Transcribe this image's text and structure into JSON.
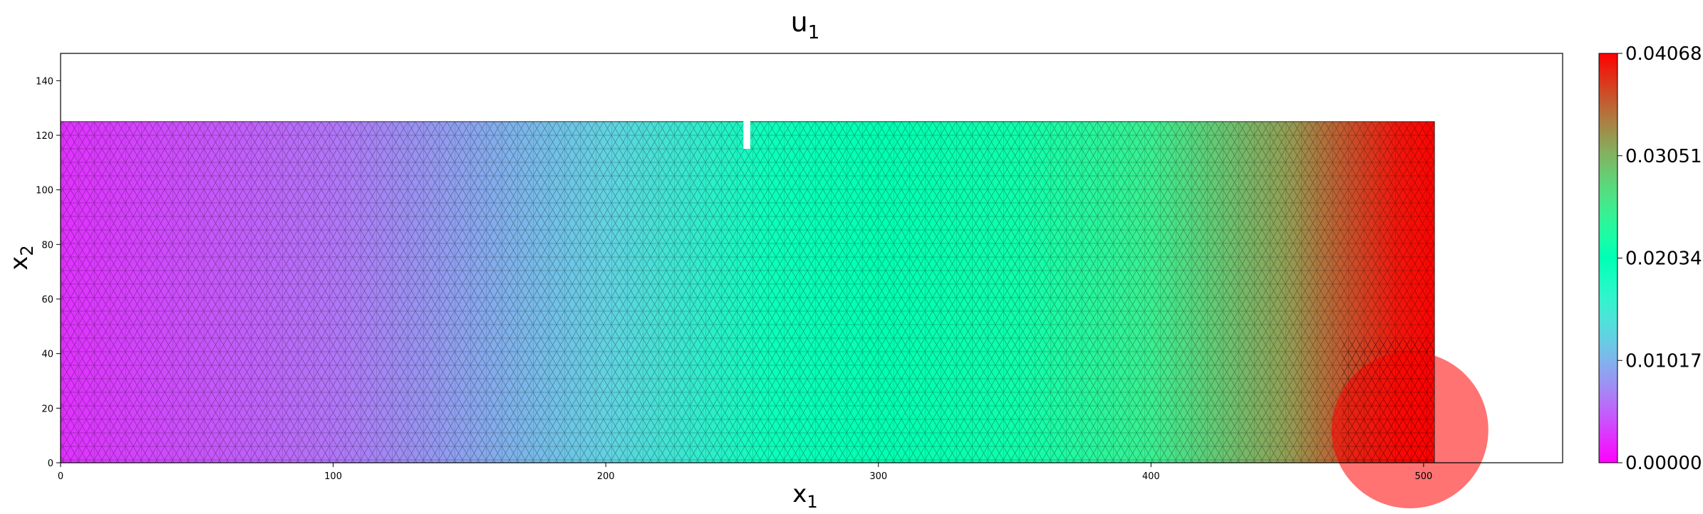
{
  "chart_data": {
    "type": "heatmap",
    "title": "u",
    "title_sub": "1",
    "xlabel": "x",
    "xlabel_sub": "1",
    "ylabel": "x",
    "ylabel_sub": "2",
    "xlim": [
      0,
      551
    ],
    "ylim": [
      0,
      150
    ],
    "xticks": [
      0,
      100,
      200,
      300,
      400,
      500
    ],
    "yticks": [
      0,
      20,
      40,
      60,
      80,
      100,
      120,
      140
    ],
    "grid": false,
    "colormap": "rainbow",
    "colorbar": {
      "min": 0.0,
      "max": 0.04068,
      "ticks": [
        "0.00000",
        "0.01017",
        "0.02034",
        "0.03051",
        "0.04068"
      ]
    },
    "domain_region": {
      "x_range": [
        0,
        504
      ],
      "y_top": 125,
      "notch_x": [
        250.5,
        253.0
      ],
      "notch_y": [
        115,
        125
      ]
    },
    "field_profile": [
      {
        "x": 0,
        "value": 0.0025
      },
      {
        "x": 100,
        "value": 0.0062
      },
      {
        "x": 200,
        "value": 0.0125
      },
      {
        "x": 260,
        "value": 0.0193
      },
      {
        "x": 300,
        "value": 0.0205
      },
      {
        "x": 350,
        "value": 0.0215
      },
      {
        "x": 400,
        "value": 0.025
      },
      {
        "x": 450,
        "value": 0.032
      },
      {
        "x": 490,
        "value": 0.0395
      },
      {
        "x": 504,
        "value": 0.0405
      }
    ]
  }
}
